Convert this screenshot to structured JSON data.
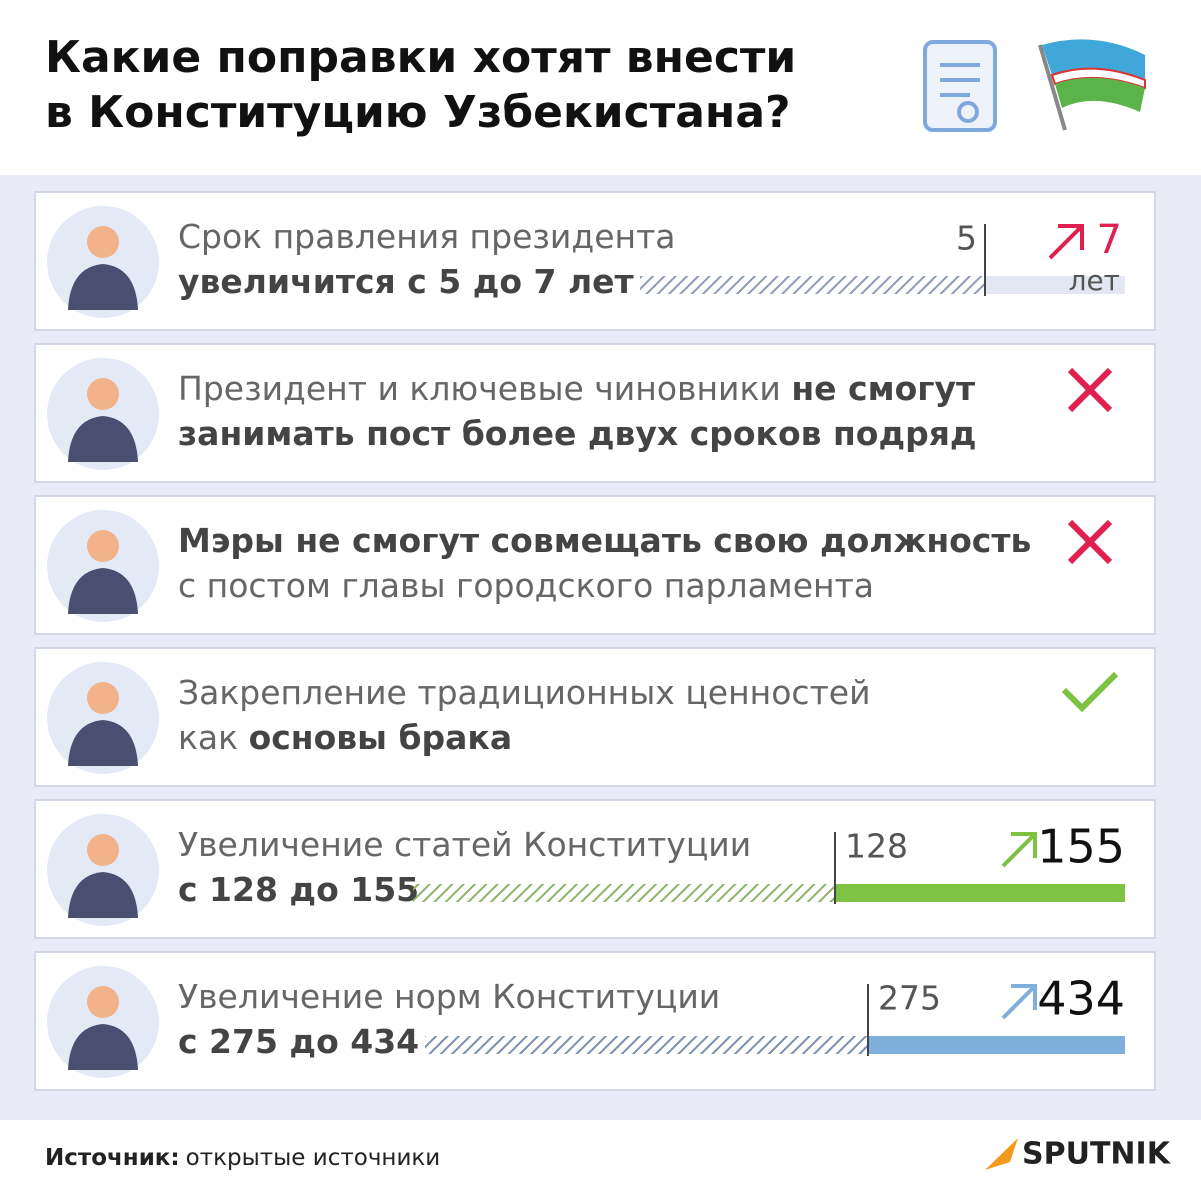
{
  "header": {
    "title_lines": [
      "Какие поправки хотят внести",
      "в Конституцию Узбекистана?"
    ]
  },
  "items": [
    {
      "lines": [
        [
          {
            "text": "Срок правления президента",
            "bold": false
          }
        ],
        [
          {
            "text": "увеличится с 5 до 7 лет",
            "bold": true
          }
        ]
      ],
      "bar": {
        "from": 5,
        "to": 7,
        "unit": "лет",
        "color": "#e3e7f2",
        "hatch": "#8e9ab8",
        "accent": "#e0204f"
      }
    },
    {
      "lines": [
        [
          {
            "text": "Президент и ключевые чиновники ",
            "bold": false
          },
          {
            "text": "не смогут",
            "bold": true
          }
        ],
        [
          {
            "text": "занимать пост более двух сроков подряд",
            "bold": true
          }
        ]
      ],
      "status": {
        "mark": "cross",
        "color": "#e0204f"
      }
    },
    {
      "lines": [
        [
          {
            "text": "Мэры не смогут совмещать свою должность",
            "bold": true
          }
        ],
        [
          {
            "text": "с постом главы городского парламента",
            "bold": false
          }
        ]
      ],
      "status": {
        "mark": "cross",
        "color": "#e0204f"
      }
    },
    {
      "lines": [
        [
          {
            "text": "Закрепление традиционных ценностей",
            "bold": false
          }
        ],
        [
          {
            "text": "как ",
            "bold": false
          },
          {
            "text": "основы брака",
            "bold": true
          }
        ]
      ],
      "status": {
        "mark": "check",
        "color": "#7dc242"
      }
    },
    {
      "lines": [
        [
          {
            "text": "Увеличение статей Конституции",
            "bold": false
          }
        ],
        [
          {
            "text": "с 128 до 155",
            "bold": true
          }
        ]
      ],
      "bar": {
        "from": 128,
        "to": 155,
        "color": "#7dc242",
        "hatch": "#8cb36a",
        "accent": "#7dc242"
      }
    },
    {
      "lines": [
        [
          {
            "text": "Увеличение норм Конституции",
            "bold": false
          }
        ],
        [
          {
            "text": "с 275 до 434",
            "bold": true
          }
        ]
      ],
      "bar": {
        "from": 275,
        "to": 434,
        "color": "#7fb0dc",
        "hatch": "#7b8fae",
        "accent": "#7fb0dc"
      }
    }
  ],
  "footer": {
    "source_label": "Источник:",
    "source": "открытые источники",
    "brand": "SPUTNIK"
  }
}
